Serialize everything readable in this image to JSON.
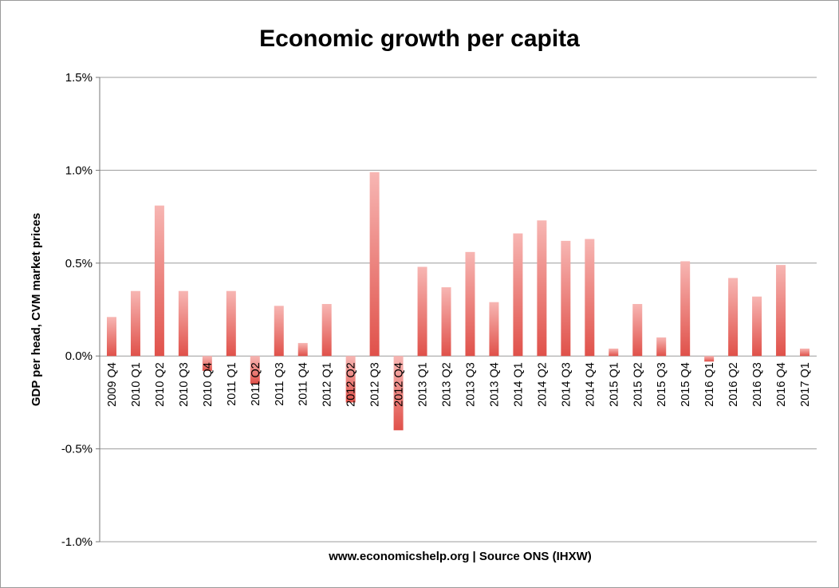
{
  "chart_data": {
    "type": "bar",
    "title": "Economic growth per capita",
    "xlabel": "www.economicshelp.org | Source ONS (IHXW)",
    "ylabel": "GDP per head, CVM market prices",
    "ylim": [
      -1.0,
      1.5
    ],
    "yticks": [
      -1.0,
      -0.5,
      0.0,
      0.5,
      1.0,
      1.5
    ],
    "ytick_labels": [
      "-1.0%",
      "-0.5%",
      "0.0%",
      "0.5%",
      "1.0%",
      "1.5%"
    ],
    "grid": "horizontal",
    "legend": "none",
    "bar_color_top": "#f7b6b3",
    "bar_color_bottom": "#e0514a",
    "categories": [
      "2009 Q4",
      "2010 Q1",
      "2010 Q2",
      "2010 Q3",
      "2010 Q4",
      "2011 Q1",
      "2011 Q2",
      "2011 Q3",
      "2011 Q4",
      "2012 Q1",
      "2012 Q2",
      "2012 Q3",
      "2012 Q4",
      "2013 Q1",
      "2013 Q2",
      "2013 Q3",
      "2013 Q4",
      "2014 Q1",
      "2014 Q2",
      "2014 Q3",
      "2014 Q4",
      "2015 Q1",
      "2015 Q2",
      "2015 Q3",
      "2015 Q4",
      "2016 Q1",
      "2016 Q2",
      "2016 Q3",
      "2016 Q4",
      "2017 Q1"
    ],
    "values": [
      0.21,
      0.35,
      0.81,
      0.35,
      -0.08,
      0.35,
      -0.15,
      0.27,
      0.07,
      0.28,
      -0.25,
      0.99,
      -0.4,
      0.48,
      0.37,
      0.56,
      0.29,
      0.66,
      0.73,
      0.62,
      0.63,
      0.04,
      0.28,
      0.1,
      0.51,
      -0.03,
      0.42,
      0.32,
      0.49,
      0.04
    ]
  }
}
